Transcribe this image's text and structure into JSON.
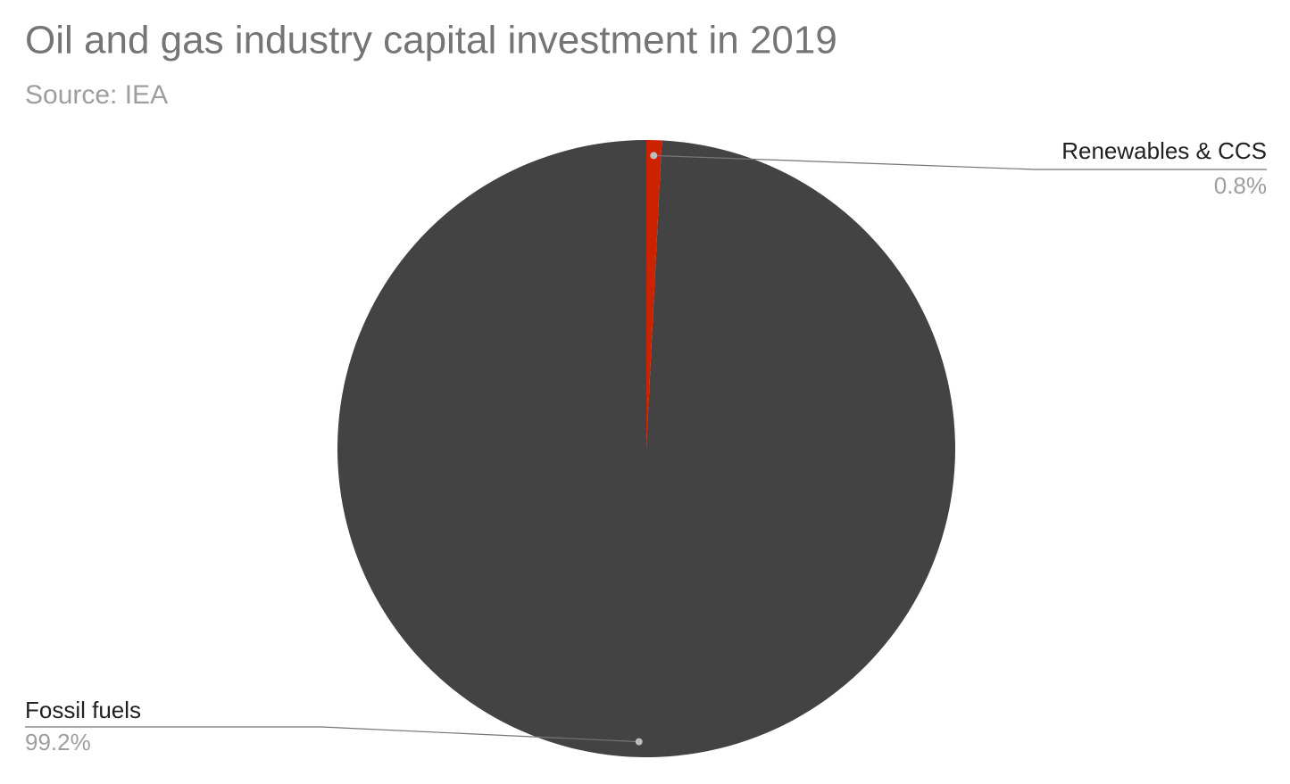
{
  "chart_data": {
    "type": "pie",
    "title": "Oil and gas industry capital investment in 2019",
    "subtitle": "Source: IEA",
    "categories": [
      "Renewables & CCS",
      "Fossil fuels"
    ],
    "values": [
      0.8,
      99.2
    ],
    "value_labels": [
      "0.8%",
      "99.2%"
    ],
    "colors": [
      "#cc2200",
      "#434343"
    ]
  }
}
